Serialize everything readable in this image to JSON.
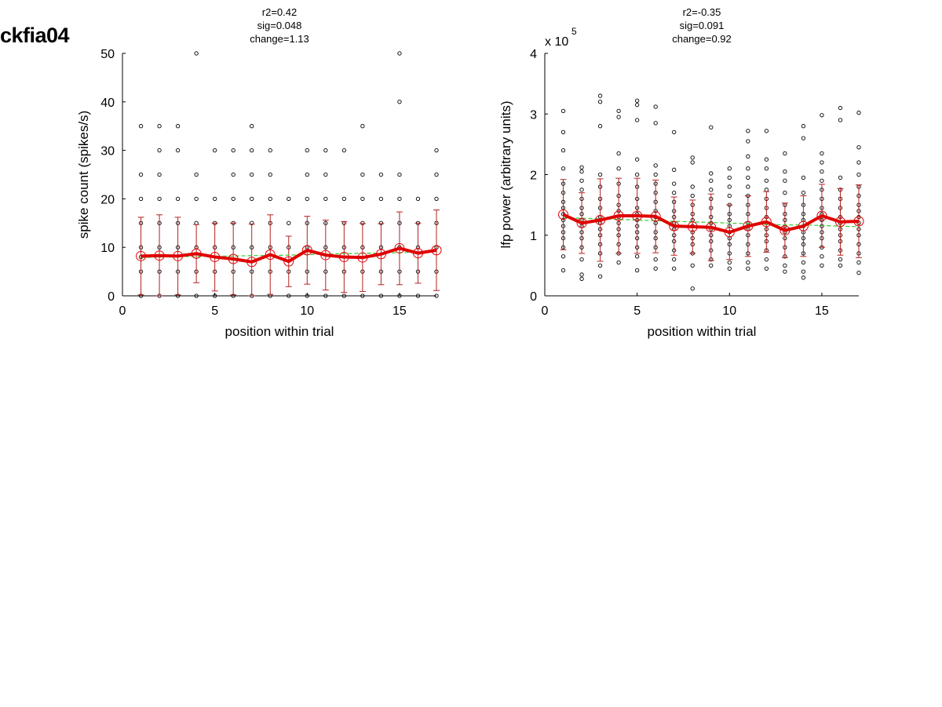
{
  "page_title": "ckfia04",
  "chart_data": [
    {
      "type": "scatter",
      "stats": [
        "r2=0.42",
        "sig=0.048",
        "change=1.13"
      ],
      "xlabel": "position within trial",
      "ylabel": "spike count (spikes/s)",
      "xlim": [
        0,
        17
      ],
      "ylim": [
        0,
        50
      ],
      "xticks": [
        0,
        5,
        10,
        15
      ],
      "yticks": [
        0,
        10,
        20,
        30,
        40,
        50
      ],
      "exponent_label": "",
      "grid": false,
      "x": [
        1,
        2,
        3,
        4,
        5,
        6,
        7,
        8,
        9,
        10,
        11,
        12,
        13,
        14,
        15,
        16,
        17
      ],
      "mean": [
        8.2,
        8.3,
        8.2,
        8.7,
        8.0,
        7.6,
        7.0,
        8.5,
        7.1,
        9.4,
        8.4,
        8.0,
        7.9,
        8.6,
        9.8,
        8.8,
        9.4
      ],
      "std": [
        8.0,
        8.4,
        8.0,
        6.0,
        7.0,
        7.4,
        7.8,
        8.2,
        5.2,
        7.0,
        7.2,
        7.3,
        7.0,
        6.3,
        7.5,
        6.2,
        8.3
      ],
      "fit": [
        7.9,
        8.0,
        8.1,
        8.1,
        8.2,
        8.2,
        8.3,
        8.3,
        8.4,
        8.5,
        8.6,
        8.7,
        8.8,
        8.8,
        8.9,
        9.0,
        9.1
      ],
      "samples": [
        [
          0,
          5,
          8,
          10,
          15,
          20,
          25,
          35
        ],
        [
          0,
          5,
          10,
          15,
          20,
          25,
          30,
          35
        ],
        [
          0,
          5,
          10,
          15,
          20,
          30,
          35
        ],
        [
          0,
          5,
          10,
          15,
          20,
          25,
          50
        ],
        [
          0,
          5,
          10,
          15,
          20,
          30
        ],
        [
          0,
          5,
          10,
          15,
          20,
          25,
          30
        ],
        [
          0,
          5,
          10,
          15,
          20,
          25,
          30,
          35
        ],
        [
          0,
          5,
          10,
          15,
          20,
          25,
          30
        ],
        [
          0,
          5,
          10,
          15,
          20
        ],
        [
          0,
          5,
          10,
          15,
          20,
          25,
          30
        ],
        [
          0,
          5,
          10,
          15,
          20,
          25,
          30
        ],
        [
          0,
          5,
          10,
          15,
          20,
          30
        ],
        [
          0,
          5,
          10,
          15,
          20,
          25,
          35
        ],
        [
          0,
          5,
          10,
          15,
          20,
          25
        ],
        [
          0,
          5,
          10,
          15,
          20,
          25,
          40,
          50
        ],
        [
          0,
          5,
          10,
          15,
          20
        ],
        [
          0,
          5,
          10,
          15,
          20,
          25,
          30
        ]
      ]
    },
    {
      "type": "scatter",
      "stats": [
        "r2=-0.35",
        "sig=0.091",
        "change=0.92"
      ],
      "xlabel": "position within trial",
      "ylabel": "lfp power (arbitrary units)",
      "xlim": [
        0,
        17
      ],
      "ylim": [
        0,
        4
      ],
      "xticks": [
        0,
        5,
        10,
        15
      ],
      "yticks": [
        0,
        1,
        2,
        3,
        4
      ],
      "exponent_label": "x 10",
      "exponent_power": "5",
      "grid": false,
      "x": [
        1,
        2,
        3,
        4,
        5,
        6,
        7,
        8,
        9,
        10,
        11,
        12,
        13,
        14,
        15,
        16,
        17
      ],
      "mean": [
        1.34,
        1.2,
        1.25,
        1.32,
        1.32,
        1.31,
        1.15,
        1.14,
        1.13,
        1.05,
        1.15,
        1.22,
        1.08,
        1.15,
        1.32,
        1.22,
        1.23
      ],
      "std": [
        0.58,
        0.5,
        0.68,
        0.62,
        0.62,
        0.6,
        0.48,
        0.44,
        0.55,
        0.45,
        0.5,
        0.5,
        0.45,
        0.5,
        0.52,
        0.55,
        0.6
      ],
      "fit": [
        1.29,
        1.28,
        1.27,
        1.26,
        1.25,
        1.24,
        1.23,
        1.22,
        1.21,
        1.2,
        1.19,
        1.18,
        1.17,
        1.17,
        1.16,
        1.15,
        1.14
      ],
      "samples": [
        [
          0.42,
          0.65,
          0.8,
          0.95,
          1.05,
          1.15,
          1.25,
          1.35,
          1.45,
          1.55,
          1.7,
          1.85,
          2.1,
          2.4,
          2.7,
          3.05
        ],
        [
          0.28,
          0.35,
          0.6,
          0.8,
          0.95,
          1.05,
          1.15,
          1.25,
          1.35,
          1.45,
          1.6,
          1.75,
          1.9,
          2.05,
          2.12
        ],
        [
          0.32,
          0.5,
          0.7,
          0.85,
          1.0,
          1.1,
          1.2,
          1.3,
          1.45,
          1.6,
          1.8,
          2.0,
          2.8,
          3.2,
          3.3
        ],
        [
          0.55,
          0.7,
          0.85,
          1.0,
          1.1,
          1.2,
          1.3,
          1.4,
          1.5,
          1.65,
          1.85,
          2.1,
          2.35,
          2.95,
          3.05
        ],
        [
          0.42,
          0.65,
          0.8,
          0.95,
          1.05,
          1.15,
          1.25,
          1.35,
          1.45,
          1.6,
          1.8,
          2.0,
          2.25,
          2.9,
          3.15,
          3.22
        ],
        [
          0.45,
          0.6,
          0.8,
          0.95,
          1.05,
          1.2,
          1.3,
          1.4,
          1.55,
          1.7,
          1.85,
          2.0,
          2.15,
          2.85,
          3.12
        ],
        [
          0.45,
          0.6,
          0.75,
          0.9,
          1.0,
          1.1,
          1.2,
          1.3,
          1.4,
          1.55,
          1.7,
          1.85,
          2.08,
          2.7
        ],
        [
          0.12,
          0.5,
          0.7,
          0.85,
          0.95,
          1.05,
          1.15,
          1.25,
          1.35,
          1.5,
          1.65,
          1.8,
          2.2,
          2.28
        ],
        [
          0.5,
          0.6,
          0.75,
          0.9,
          1.0,
          1.1,
          1.2,
          1.3,
          1.45,
          1.6,
          1.75,
          1.9,
          2.02,
          2.78
        ],
        [
          0.45,
          0.55,
          0.7,
          0.85,
          0.95,
          1.05,
          1.15,
          1.25,
          1.35,
          1.5,
          1.65,
          1.8,
          1.95,
          2.1
        ],
        [
          0.45,
          0.55,
          0.7,
          0.85,
          1.0,
          1.1,
          1.2,
          1.35,
          1.5,
          1.65,
          1.8,
          1.95,
          2.1,
          2.3,
          2.55,
          2.72
        ],
        [
          0.45,
          0.6,
          0.75,
          0.9,
          1.0,
          1.1,
          1.2,
          1.3,
          1.45,
          1.6,
          1.75,
          1.9,
          2.1,
          2.25,
          2.72
        ],
        [
          0.4,
          0.5,
          0.65,
          0.8,
          0.95,
          1.05,
          1.15,
          1.25,
          1.35,
          1.5,
          1.7,
          1.9,
          2.05,
          2.35
        ],
        [
          0.3,
          0.4,
          0.55,
          0.7,
          0.85,
          0.95,
          1.05,
          1.15,
          1.25,
          1.35,
          1.5,
          1.7,
          1.95,
          2.6,
          2.8
        ],
        [
          0.5,
          0.65,
          0.8,
          0.95,
          1.05,
          1.15,
          1.25,
          1.35,
          1.45,
          1.6,
          1.75,
          1.9,
          2.05,
          2.2,
          2.35,
          2.98
        ],
        [
          0.5,
          0.6,
          0.75,
          0.9,
          1.0,
          1.1,
          1.2,
          1.3,
          1.45,
          1.6,
          1.75,
          1.95,
          2.9,
          3.1
        ],
        [
          0.38,
          0.55,
          0.7,
          0.85,
          1.0,
          1.1,
          1.2,
          1.3,
          1.4,
          1.5,
          1.65,
          1.8,
          2.0,
          2.2,
          2.45,
          3.02
        ]
      ]
    }
  ],
  "colors": {
    "mean_line": "#e00000",
    "error_bar": "#b52020",
    "fit_line": "#33cc33",
    "samples": "#000000",
    "axes": "#000000"
  }
}
